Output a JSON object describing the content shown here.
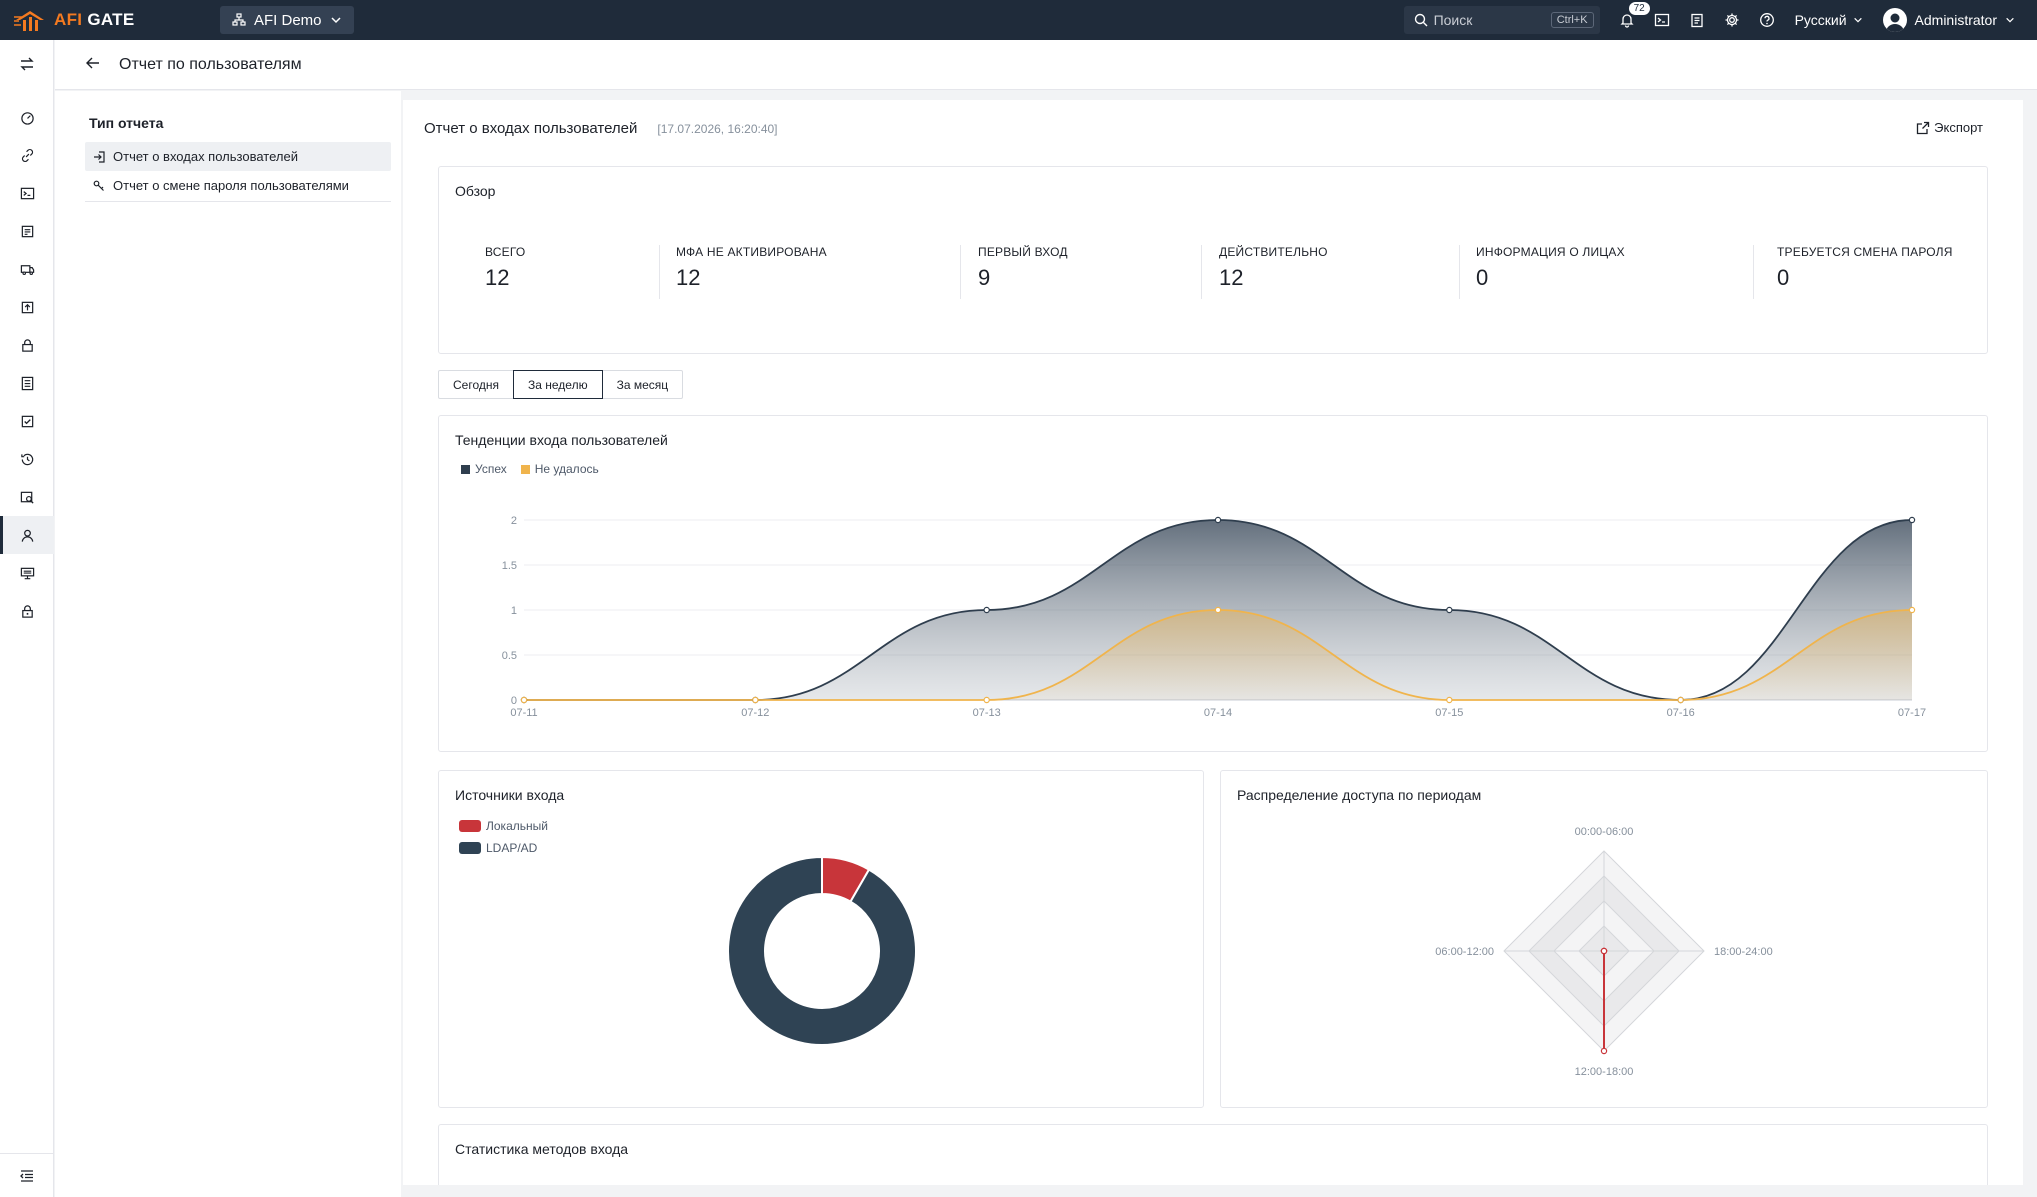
{
  "topbar": {
    "logo": {
      "brand_part1": "AFI",
      "brand_part2": "GATE"
    },
    "app_selector": "AFI Demo",
    "search": {
      "placeholder": "Поиск",
      "shortcut": "Ctrl+K"
    },
    "notifications_count": "72",
    "language": "Русский",
    "user": "Administrator"
  },
  "rail": {
    "items": [
      "dashboard-icon",
      "link-icon",
      "terminal-icon",
      "document-icon",
      "truck-icon",
      "upload-icon",
      "lock-icon",
      "list-icon",
      "checklist-icon",
      "history-icon",
      "audit-icon",
      "user-icon",
      "monitor-icon",
      "lock-key-icon"
    ],
    "active_index": 11
  },
  "header": {
    "title": "Отчет по пользователям"
  },
  "side": {
    "title": "Тип отчета",
    "items": [
      {
        "label": "Отчет о входах пользователей",
        "active": true
      },
      {
        "label": "Отчет о смене пароля пользователями",
        "active": false
      }
    ]
  },
  "report": {
    "title": "Отчет о входах пользователей",
    "timestamp": "[17.07.2026, 16:20:40]",
    "export": "Экспорт"
  },
  "overview": {
    "title": "Обзор",
    "stats": [
      {
        "label": "ВСЕГО",
        "value": "12"
      },
      {
        "label": "МФА НЕ АКТИВИРОВАНА",
        "value": "12"
      },
      {
        "label": "ПЕРВЫЙ ВХОД",
        "value": "9"
      },
      {
        "label": "ДЕЙСТВИТЕЛЬНО",
        "value": "12"
      },
      {
        "label": "ИНФОРМАЦИЯ О ЛИЦАХ",
        "value": "0"
      },
      {
        "label": "ТРЕБУЕТСЯ СМЕНА ПАРОЛЯ",
        "value": "0"
      }
    ]
  },
  "period_tabs": {
    "items": [
      "Сегодня",
      "За неделю",
      "За месяц"
    ],
    "active_index": 1
  },
  "trend": {
    "title": "Тенденции входа пользователей",
    "legend": [
      {
        "name": "Успех",
        "color": "#2f3e4e"
      },
      {
        "name": "Не удалось",
        "color": "#f0b44c"
      }
    ]
  },
  "sources": {
    "title": "Источники входа",
    "legend": [
      {
        "name": "Локальный",
        "color": "#c8353a"
      },
      {
        "name": "LDAP/AD",
        "color": "#2f4354"
      }
    ]
  },
  "distribution": {
    "title": "Распределение доступа по периодам"
  },
  "methods": {
    "title": "Статистика методов входа"
  },
  "chart_data": [
    {
      "type": "area",
      "title": "Тенденции входа пользователей",
      "x": [
        "07-11",
        "07-12",
        "07-13",
        "07-14",
        "07-15",
        "07-16",
        "07-17"
      ],
      "series": [
        {
          "name": "Успех",
          "values": [
            0,
            0,
            1,
            2,
            1,
            0,
            2
          ]
        },
        {
          "name": "Не удалось",
          "values": [
            0,
            0,
            0,
            1,
            0,
            0,
            1
          ]
        }
      ],
      "yticks": [
        "0",
        "0.5",
        "1",
        "1.5",
        "2"
      ],
      "ylim": [
        0,
        2
      ],
      "grid": true,
      "legend": "top-left"
    },
    {
      "type": "pie",
      "title": "Источники входа",
      "labels": [
        "Локальный",
        "LDAP/AD"
      ],
      "values": [
        1,
        11
      ],
      "donut": true,
      "legend": "top-left"
    },
    {
      "type": "radar",
      "title": "Распределение доступа по периодам",
      "axes": [
        "00:00-06:00",
        "18:00-24:00",
        "12:00-18:00",
        "06:00-12:00"
      ],
      "values": [
        0,
        0,
        1,
        0
      ],
      "max": 1
    }
  ]
}
